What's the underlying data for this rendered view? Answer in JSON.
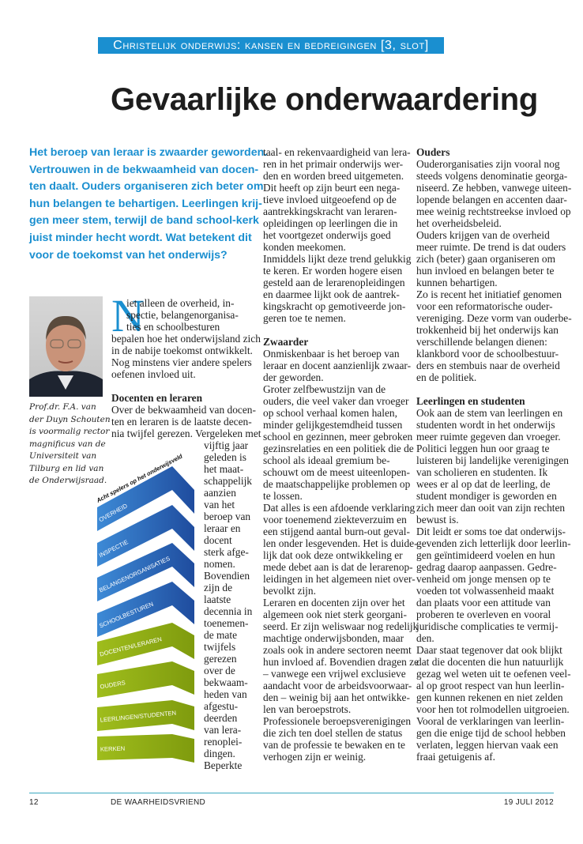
{
  "kicker": "Christelijk onderwijs: kansen en bedreigingen [3, slot]",
  "title": "Gevaarlijke onderwaardering",
  "intro": [
    "Het beroep van leraar is zwaarder geworden.",
    "Vertrouwen in de bekwaamheid van docen-",
    "ten daalt. Ouders organiseren zich beter om",
    "hun belangen te behartigen. Leerlingen krij-",
    "gen meer stem, terwijl de band school-kerk",
    "juist minder hecht wordt. Wat betekent dit",
    "voor de toekomst van het onderwijs?"
  ],
  "photo_caption": [
    "Prof.dr. F.A. van",
    "der Duyn Schouten",
    "is voormalig rector",
    "magnificus van de",
    "Universiteit van",
    "Tilburg en lid van",
    "de Onderwijsraad."
  ],
  "dropcap": "N",
  "columns": [
    {
      "name": "column-1-top",
      "lines": [
        {
          "t": "iet alleen de overheid, in-"
        },
        {
          "t": "spectie, belangenorganisa-"
        },
        {
          "t": "ties en schoolbesturen"
        },
        {
          "t": "bepalen hoe het onderwijsland zich"
        },
        {
          "t": "in de nabije toekomst ontwikkelt."
        },
        {
          "t": "Nog minstens vier andere spelers"
        },
        {
          "t": "oefenen invloed uit."
        },
        {
          "t": ""
        },
        {
          "t": "Docenten en leraren",
          "h": true
        },
        {
          "t": "Over de bekwaamheid van docen-"
        },
        {
          "t": "ten en leraren is de laatste decen-"
        },
        {
          "t": "nia twijfel gerezen. Vergeleken met"
        }
      ]
    },
    {
      "name": "column-1-narrow",
      "lines": [
        {
          "t": "vijftig jaar"
        },
        {
          "t": "geleden is"
        },
        {
          "t": "het maat-"
        },
        {
          "t": "schappelijk"
        },
        {
          "t": "aanzien"
        },
        {
          "t": "van het"
        },
        {
          "t": "beroep van"
        },
        {
          "t": "leraar en"
        },
        {
          "t": "docent"
        },
        {
          "t": "sterk afge-"
        },
        {
          "t": "nomen."
        },
        {
          "t": "Bovendien"
        },
        {
          "t": "zijn de"
        },
        {
          "t": "laatste"
        },
        {
          "t": "decennia in"
        },
        {
          "t": "toenemen-"
        },
        {
          "t": "de mate"
        },
        {
          "t": "twijfels"
        },
        {
          "t": "gerezen"
        },
        {
          "t": "over de"
        },
        {
          "t": "bekwaam-"
        },
        {
          "t": "heden van"
        },
        {
          "t": "afgestu-"
        },
        {
          "t": "deerden"
        },
        {
          "t": "van lera-"
        },
        {
          "t": "renoplei-"
        },
        {
          "t": "dingen."
        },
        {
          "t": "Beperkte"
        }
      ]
    },
    {
      "name": "column-2",
      "lines": [
        {
          "t": "taal- en rekenvaardigheid van lera-"
        },
        {
          "t": "ren in het primair onderwijs wer-"
        },
        {
          "t": "den en worden breed uitgemeten."
        },
        {
          "t": "Dit heeft op zijn beurt een nega-"
        },
        {
          "t": "tieve invloed uitgeoefend op de"
        },
        {
          "t": "aantrekkingskracht van leraren-"
        },
        {
          "t": "opleidingen op leerlingen die in"
        },
        {
          "t": "het voortgezet onderwijs goed"
        },
        {
          "t": "konden meekomen."
        },
        {
          "t": "Inmiddels lijkt deze trend gelukkig"
        },
        {
          "t": "te keren. Er worden hogere eisen"
        },
        {
          "t": "gesteld aan de lerarenopleidingen"
        },
        {
          "t": "en daarmee lijkt ook de aantrek-"
        },
        {
          "t": "kingskracht op gemotiveerde jon-"
        },
        {
          "t": "geren toe te nemen."
        },
        {
          "t": ""
        },
        {
          "t": "Zwaarder",
          "h": true
        },
        {
          "t": "Onmiskenbaar is het beroep van"
        },
        {
          "t": "leraar en docent aanzienlijk zwaar-"
        },
        {
          "t": "der geworden."
        },
        {
          "t": "Groter zelfbewustzijn van de"
        },
        {
          "t": "ouders, die veel vaker dan vroeger"
        },
        {
          "t": "op school verhaal komen halen,"
        },
        {
          "t": "minder gelijkgestemdheid tussen"
        },
        {
          "t": "school en gezinnen, meer gebroken"
        },
        {
          "t": "gezinsrelaties en een politiek die de"
        },
        {
          "t": "school als ideaal gremium be-"
        },
        {
          "t": "schouwt om de meest uiteenlopen-"
        },
        {
          "t": "de maatschappelijke problemen op"
        },
        {
          "t": "te lossen."
        },
        {
          "t": "Dat alles is een afdoende verklaring"
        },
        {
          "t": "voor toenemend ziekteverzuim en"
        },
        {
          "t": "een stijgend aantal burn-out geval-"
        },
        {
          "t": "len onder lesgevenden. Het is duide-"
        },
        {
          "t": "lijk dat ook deze ontwikkeling er"
        },
        {
          "t": "mede debet aan is dat de lerarenop-"
        },
        {
          "t": "leidingen in het algemeen niet over-"
        },
        {
          "t": "bevolkt zijn."
        },
        {
          "t": "Leraren en docenten zijn over het"
        },
        {
          "t": "algemeen ook niet sterk georgani-"
        },
        {
          "t": "seerd. Er zijn weliswaar nog redelijk"
        },
        {
          "t": "machtige onderwijsbonden, maar"
        },
        {
          "t": "zoals ook in andere sectoren neemt"
        },
        {
          "t": "hun invloed af. Bovendien dragen ze"
        },
        {
          "t": "– vanwege een vrijwel exclusieve"
        },
        {
          "t": "aandacht voor de arbeidsvoorwaar-"
        },
        {
          "t": "den – weinig bij aan het ontwikke-"
        },
        {
          "t": "len van beroepstrots."
        },
        {
          "t": "Professionele beroepsverenigingen"
        },
        {
          "t": "die zich ten doel stellen de status"
        },
        {
          "t": "van de professie te bewaken en te"
        },
        {
          "t": "verhogen zijn er weinig."
        }
      ]
    },
    {
      "name": "column-3",
      "lines": [
        {
          "t": "Ouders",
          "h": true
        },
        {
          "t": "Ouderorganisaties zijn vooral nog"
        },
        {
          "t": "steeds volgens denominatie georga-"
        },
        {
          "t": "niseerd. Ze hebben, vanwege uiteen-"
        },
        {
          "t": "lopende belangen en accenten daar-"
        },
        {
          "t": "mee weinig rechtstreekse invloed op"
        },
        {
          "t": "het overheidsbeleid."
        },
        {
          "t": "Ouders krijgen van de overheid"
        },
        {
          "t": "meer ruimte. De trend is dat ouders"
        },
        {
          "t": "zich (beter) gaan organiseren om"
        },
        {
          "t": "hun invloed en belangen beter te"
        },
        {
          "t": "kunnen behartigen."
        },
        {
          "t": "Zo is recent het initiatief genomen"
        },
        {
          "t": "voor een reformatorische ouder-"
        },
        {
          "t": "vereniging. Deze vorm van ouderbe-"
        },
        {
          "t": "trokkenheid bij het onderwijs kan"
        },
        {
          "t": "verschillende belangen dienen:"
        },
        {
          "t": "klankbord voor de schoolbestuur-"
        },
        {
          "t": "ders en stembuis naar de overheid"
        },
        {
          "t": "en de politiek."
        },
        {
          "t": ""
        },
        {
          "t": "Leerlingen en studenten",
          "h": true
        },
        {
          "t": "Ook aan de stem van leerlingen en"
        },
        {
          "t": "studenten wordt in het onderwijs"
        },
        {
          "t": "meer ruimte gegeven dan vroeger."
        },
        {
          "t": "Politici leggen hun oor graag te"
        },
        {
          "t": "luisteren bij landelijke verenigingen"
        },
        {
          "t": "van scholieren en studenten. Ik"
        },
        {
          "t": "wees er al op dat de leerling, de"
        },
        {
          "t": "student mondiger is geworden en"
        },
        {
          "t": "zich meer dan ooit van zijn rechten"
        },
        {
          "t": "bewust is."
        },
        {
          "t": "Dit leidt er soms toe dat onderwijs-"
        },
        {
          "t": "gevenden zich letterlijk door leerlin-"
        },
        {
          "t": "gen geïntimideerd voelen en hun"
        },
        {
          "t": "gedrag daarop aanpassen. Gedre-"
        },
        {
          "t": "venheid om jonge mensen op te"
        },
        {
          "t": "voeden tot volwassenheid maakt"
        },
        {
          "t": "dan plaats voor een attitude van"
        },
        {
          "t": "proberen te overleven en vooral"
        },
        {
          "t": "juridische complicaties te vermij-"
        },
        {
          "t": "den."
        },
        {
          "t": "Daar staat tegenover dat ook blijkt"
        },
        {
          "t": "dat die docenten die hun natuurlijk"
        },
        {
          "t": "gezag wel weten uit te oefenen veel-"
        },
        {
          "t": "al op groot respect van hun leerlin-"
        },
        {
          "t": "gen kunnen rekenen en niet zelden"
        },
        {
          "t": "voor hen tot rolmodellen uitgroeien."
        },
        {
          "t": "Vooral de verklaringen van leerlin-"
        },
        {
          "t": "gen die enige tijd de school hebben"
        },
        {
          "t": "verlaten, leggen hiervan vaak een"
        },
        {
          "t": "fraai getuigenis af."
        }
      ]
    }
  ],
  "graphic": {
    "title": "Acht spelers op het onderwijsveld",
    "items": [
      {
        "label": "OVERHEID",
        "group": "blue"
      },
      {
        "label": "INSPECTIE",
        "group": "blue"
      },
      {
        "label": "BELANGENORGANISATIES",
        "group": "blue"
      },
      {
        "label": "SCHOOLBESTUREN",
        "group": "blue"
      },
      {
        "label": "DOCENTEN/LERAREN",
        "group": "green"
      },
      {
        "label": "OUDERS",
        "group": "green"
      },
      {
        "label": "LEERLINGEN/STUDENTEN",
        "group": "green"
      },
      {
        "label": "KERKEN",
        "group": "green"
      }
    ],
    "colors": {
      "blue_light": "#3d8ad6",
      "blue_dark": "#1f4c9e",
      "green_light": "#9fbd1c",
      "green_dark": "#7f9b0e"
    }
  },
  "colors": {
    "accent": "#1a8fd0",
    "footer_rule": "#3aa8c0"
  },
  "footer": {
    "page": "12",
    "publication": "DE WAARHEIDSVRIEND",
    "date": "19 JULI 2012"
  }
}
